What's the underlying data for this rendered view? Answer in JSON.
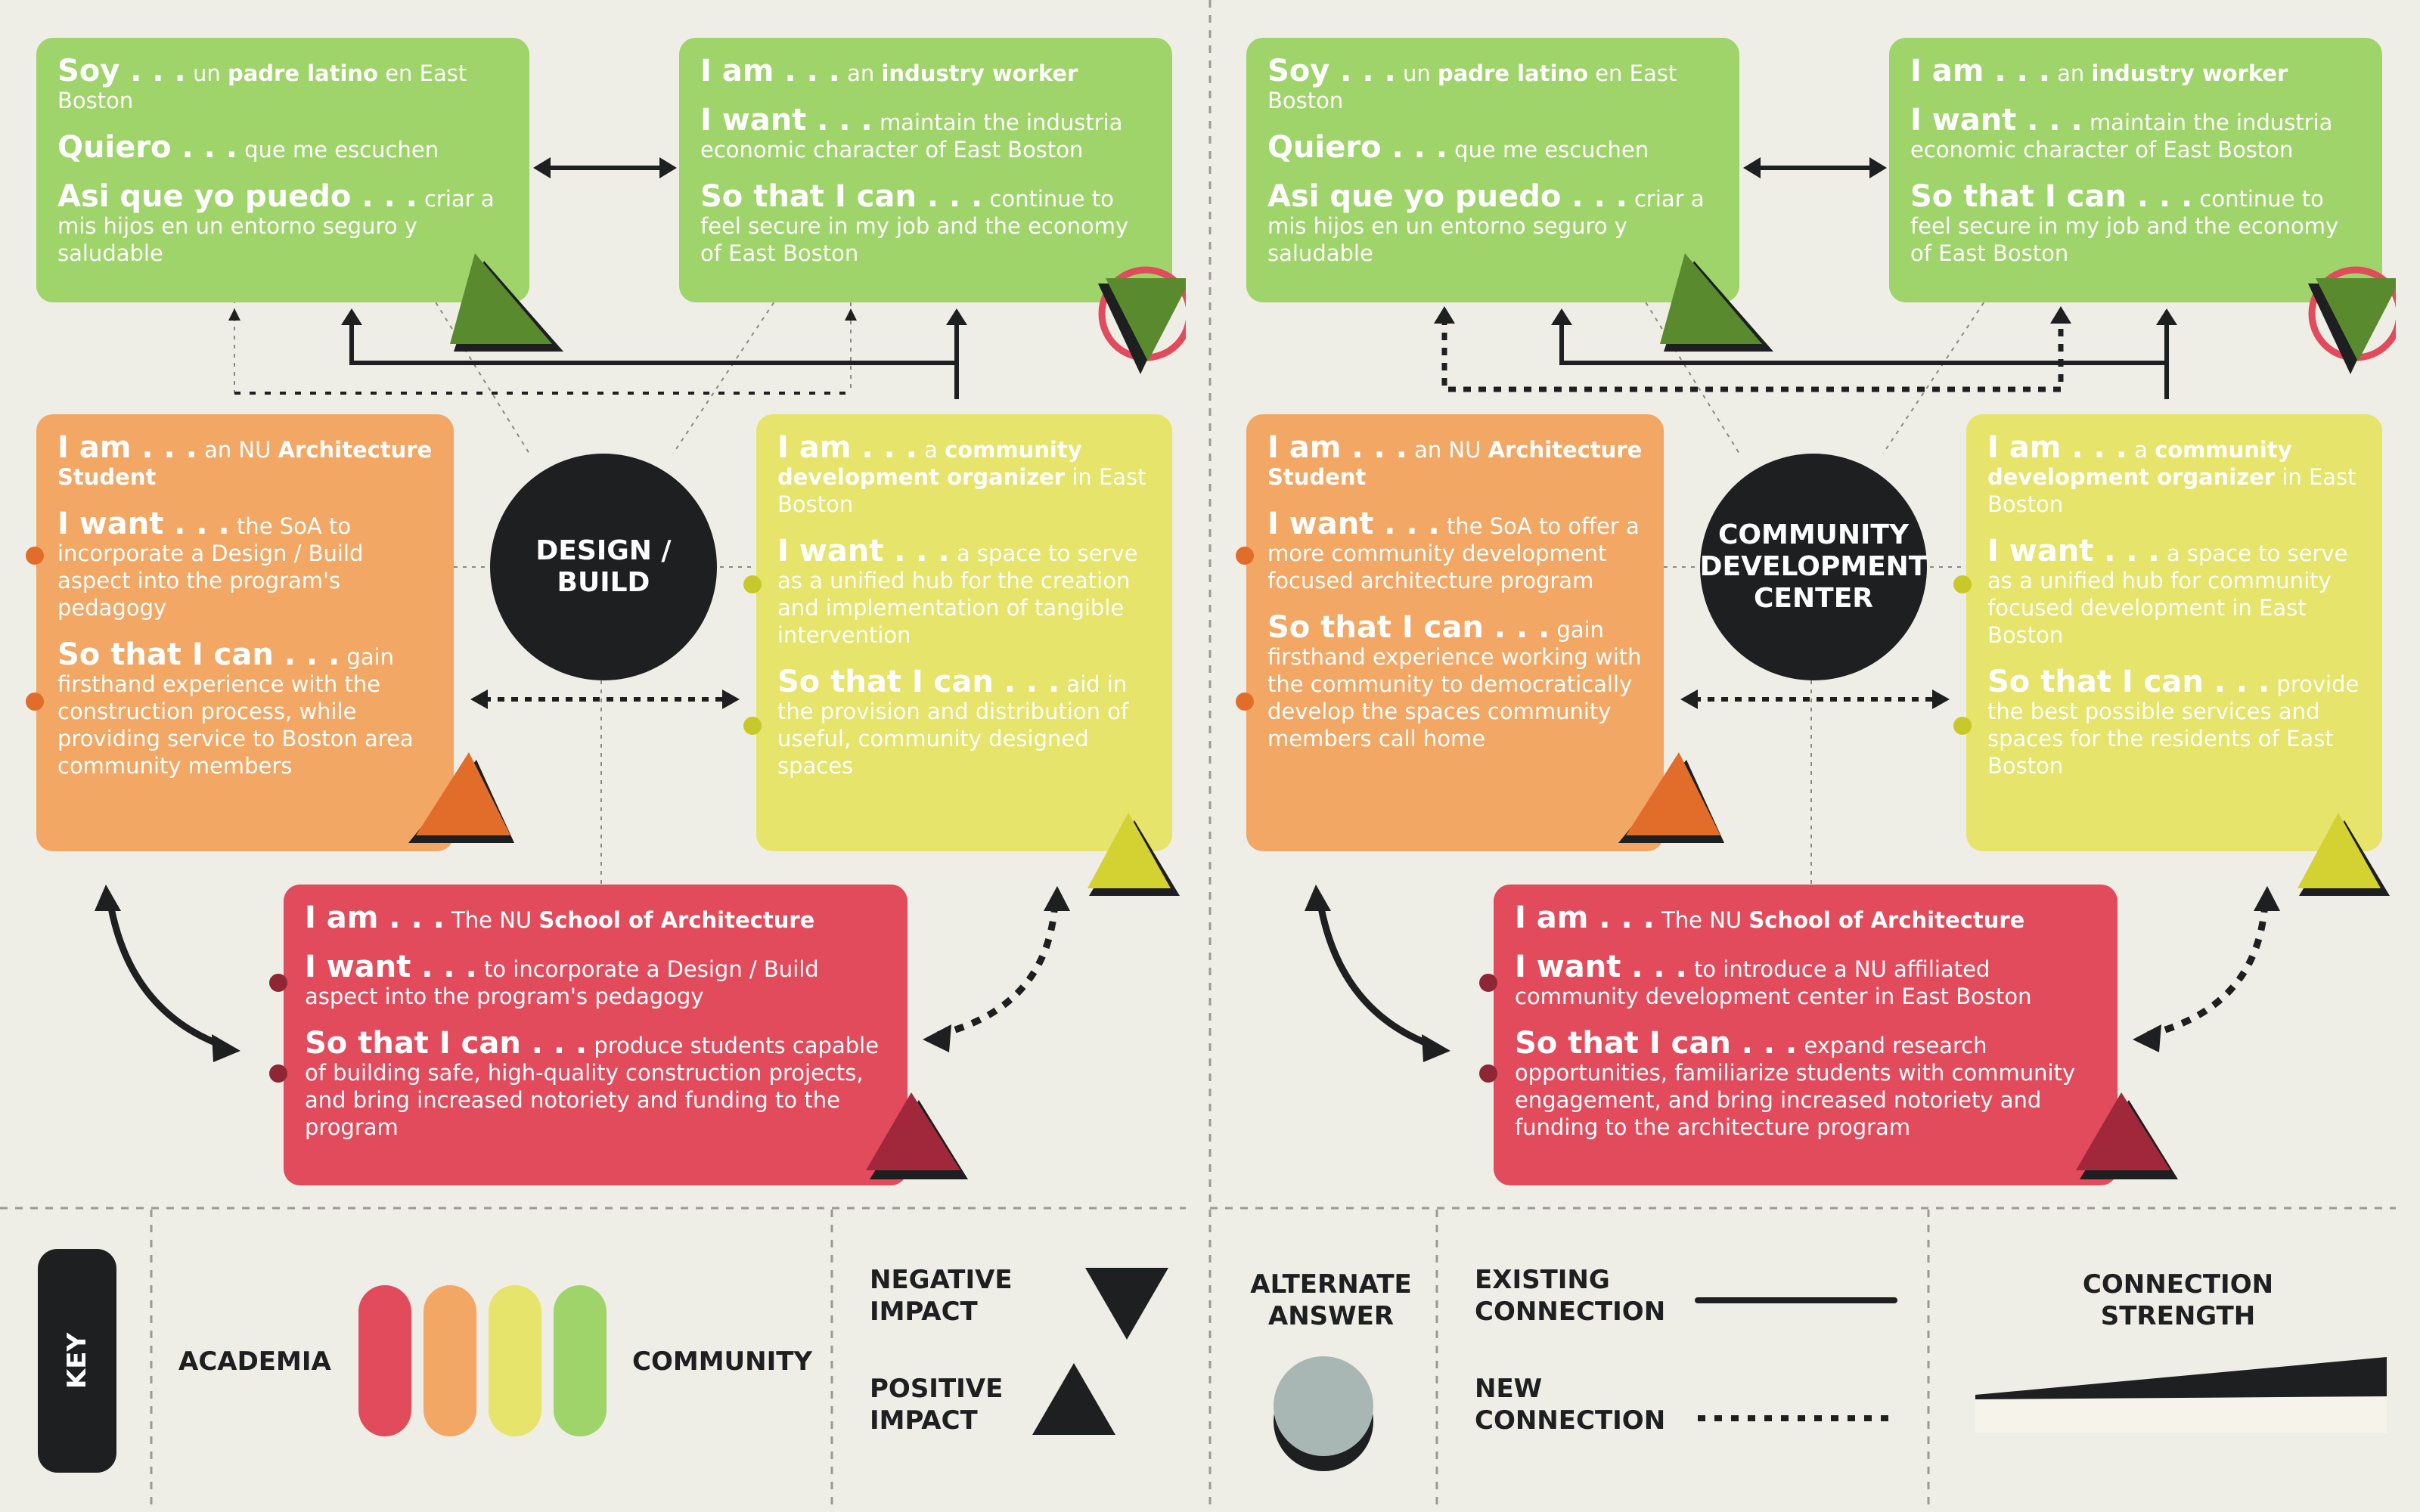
{
  "panels": [
    {
      "hub": "DESIGN / BUILD",
      "latino": {
        "soy_k": "Soy . . .",
        "soy_t1": "un ",
        "soy_b": "padre latino",
        "soy_t2": " en East Boston",
        "quiero_k": "Quiero . . .",
        "quiero_t": "que me escuchen",
        "asi_k": "Asi que yo puedo . . .",
        "asi_t": "criar a mis hijos en un entorno seguro y saludable"
      },
      "worker": {
        "iam_k": "I am . . .",
        "iam_t": "an ",
        "iam_b": "industry worker",
        "want_k": "I want . . .",
        "want_t": "maintain the industria economic character of East Boston",
        "so_k": "So that I can . . .",
        "so_t": "continue to feel secure in my job and the economy of East Boston"
      },
      "student": {
        "iam_k": "I am . . .",
        "iam_t": "an NU ",
        "iam_b": "Architecture Student",
        "want_k": "I want . . .",
        "want_t": "the SoA to incorporate a Design / Build aspect into the program's pedagogy",
        "so_k": "So that I can . . .",
        "so_t": "gain firsthand experience with the construction process, while providing service to Boston area community members"
      },
      "organizer": {
        "iam_k": "I am . . .",
        "iam_t": "a ",
        "iam_b": "community development organizer",
        "iam_t2": " in East Boston",
        "want_k": "I want . . .",
        "want_t": "a space to serve as a unified hub for the creation and implementation of tangible intervention",
        "so_k": "So that I can . . .",
        "so_t": "aid in the provision and distribution of useful, community designed spaces"
      },
      "school": {
        "iam_k": "I am . . .",
        "iam_t": "The NU ",
        "iam_b": "School of Architecture",
        "want_k": "I want . . .",
        "want_t": "to incorporate a Design / Build aspect into the program's pedagogy",
        "so_k": "So that I can . . .",
        "so_t": "produce students capable of building safe, high-quality construction projects, and bring increased notoriety and funding to the program"
      }
    },
    {
      "hub": "COMMUNITY DEVELOPMENT CENTER",
      "latino": {
        "soy_k": "Soy . . .",
        "soy_t1": "un ",
        "soy_b": "padre latino",
        "soy_t2": " en East Boston",
        "quiero_k": "Quiero . . .",
        "quiero_t": "que me escuchen",
        "asi_k": "Asi que yo puedo . . .",
        "asi_t": "criar a mis hijos en un entorno seguro y saludable"
      },
      "worker": {
        "iam_k": "I am . . .",
        "iam_t": "an ",
        "iam_b": "industry worker",
        "want_k": "I want . . .",
        "want_t": "maintain the industria economic character of East Boston",
        "so_k": "So that I can . . .",
        "so_t": "continue to feel secure in my job and the economy of East Boston"
      },
      "student": {
        "iam_k": "I am . . .",
        "iam_t": "an NU ",
        "iam_b": "Architecture Student",
        "want_k": "I want . . .",
        "want_t": "the SoA to offer a more community development focused architecture program",
        "so_k": "So that I can . . .",
        "so_t": "gain firsthand experience working with the community to democratically develop the spaces community members call home"
      },
      "organizer": {
        "iam_k": "I am . . .",
        "iam_t": "a ",
        "iam_b": "community development organizer",
        "iam_t2": " in East Boston",
        "want_k": "I want . . .",
        "want_t": "a space to serve as a unified hub for community focused development in East Boston",
        "so_k": "So that I can . . .",
        "so_t": "provide the best possible services and spaces for the residents of East Boston"
      },
      "school": {
        "iam_k": "I am . . .",
        "iam_t": "The NU ",
        "iam_b": "School of Architecture",
        "want_k": "I want . . .",
        "want_t": "to introduce a NU affiliated community development center in East Boston",
        "so_k": "So that I can . . .",
        "so_t": "expand research opportunities, familiarize students with community engagement, and bring increased notoriety and funding to the architecture program"
      }
    }
  ],
  "key": {
    "title": "KEY",
    "academia": "ACADEMIA",
    "community": "COMMUNITY",
    "negative": "NEGATIVE IMPACT",
    "positive": "POSITIVE IMPACT",
    "alternate": "ALTERNATE ANSWER",
    "existing": "EXISTING CONNECTION",
    "new": "NEW CONNECTION",
    "strength": "CONNECTION STRENGTH"
  },
  "colors": {
    "community": "#9fd46a",
    "orange": "#f3a765",
    "yellow": "#e6e46a",
    "academia": "#e14b5c",
    "dark": "#1d1f20"
  }
}
